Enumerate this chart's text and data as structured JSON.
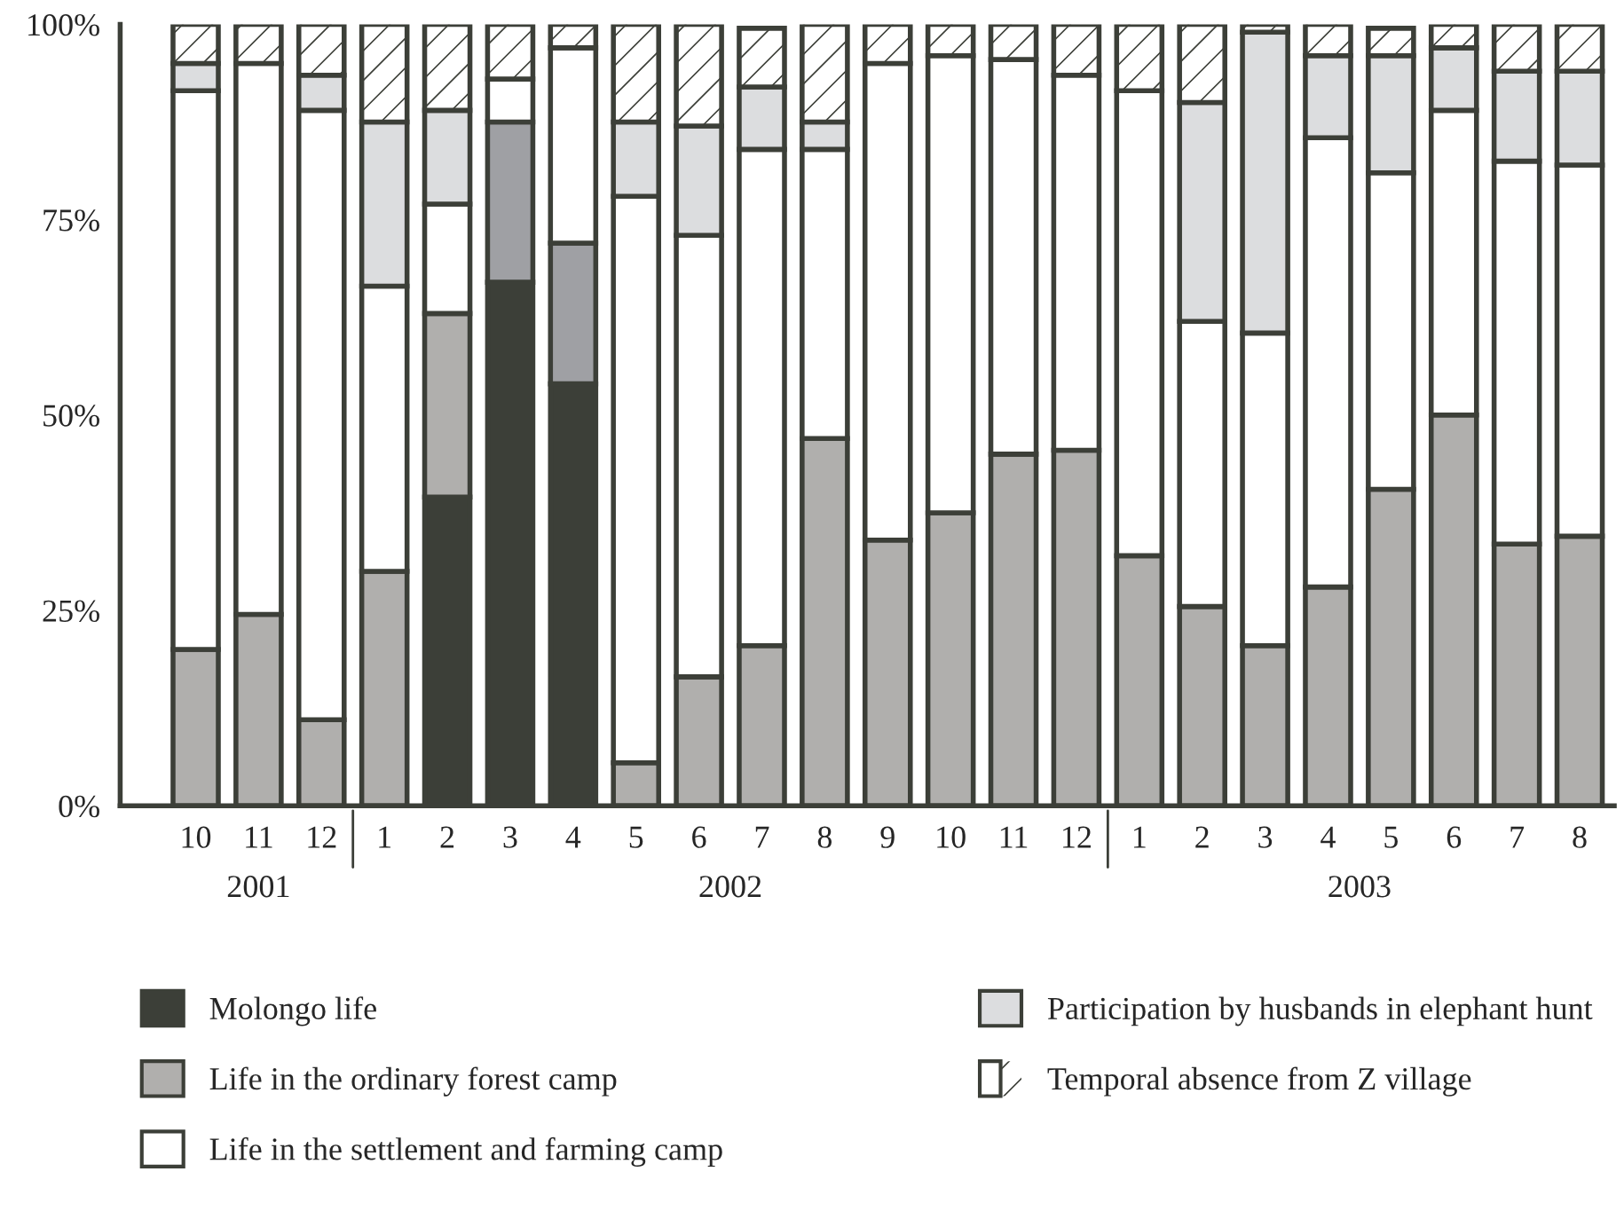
{
  "chart_data": {
    "type": "bar",
    "stacked": true,
    "categories": [
      "10",
      "11",
      "12",
      "1",
      "2",
      "3",
      "4",
      "5",
      "6",
      "7",
      "8",
      "9",
      "10",
      "11",
      "12",
      "1",
      "2",
      "3",
      "4",
      "5",
      "6",
      "7",
      "8"
    ],
    "series": [
      {
        "name": "Molongo life",
        "color": "#3c3f38",
        "values": [
          0,
          0,
          0,
          0,
          39.5,
          67,
          54,
          0,
          0,
          0,
          0,
          0,
          0,
          0,
          0,
          0,
          0,
          0,
          0,
          0,
          0,
          0,
          0
        ]
      },
      {
        "name": "Life in the ordinary forest camp",
        "color": "#b0afad",
        "colors": [
          "#b0afad",
          "#b0afad",
          "#b0afad",
          "#b0afad",
          "#b0afad",
          "#9fa0a4",
          "#9fa0a4",
          "#b0afad",
          "#b0afad",
          "#b0afad",
          "#b0afad",
          "#b0afad",
          "#b0afad",
          "#b0afad",
          "#b0afad",
          "#b0afad",
          "#b0afad",
          "#b0afad",
          "#b0afad",
          "#b0afad",
          "#b0afad",
          "#b0afad",
          "#b0afad"
        ],
        "values": [
          20,
          24.5,
          11,
          30,
          23.5,
          20.5,
          18,
          5.5,
          16.5,
          20.5,
          47,
          34,
          37.5,
          45,
          45.5,
          32,
          25.5,
          20.5,
          28,
          40.5,
          50,
          33.5,
          34.5
        ]
      },
      {
        "name": "Life in the settlement and farming camp",
        "color": "#ffffff",
        "values": [
          71.5,
          70.5,
          78,
          36.5,
          14,
          5.5,
          25,
          72.5,
          56.5,
          63.5,
          37,
          61,
          58.5,
          50.5,
          48,
          59.5,
          36.5,
          40,
          57.5,
          40.5,
          39,
          49,
          47.5
        ]
      },
      {
        "name": "Participation by husbands in elephant hunt",
        "color": "#dcdddf",
        "values": [
          3.5,
          0,
          4.5,
          21,
          12,
          0,
          0,
          9.5,
          14,
          8,
          3.5,
          0,
          0,
          0,
          0,
          0,
          28,
          38.5,
          10.5,
          15,
          8,
          11.5,
          12
        ]
      },
      {
        "name": "Temporal absence from Z village",
        "color": "#ffffff",
        "values": [
          5,
          5,
          6.5,
          12.5,
          11,
          7,
          3,
          12.5,
          13,
          7.5,
          12.5,
          5,
          4,
          4.5,
          6.5,
          8.5,
          10,
          1,
          4,
          3.5,
          3,
          6,
          6
        ]
      }
    ],
    "ylim": [
      0,
      100
    ],
    "yticks": [
      {
        "value": 0,
        "label": "0%"
      },
      {
        "value": 25,
        "label": "25%"
      },
      {
        "value": 50,
        "label": "50%"
      },
      {
        "value": 75,
        "label": "75%"
      },
      {
        "value": 100,
        "label": "100%"
      }
    ],
    "annotations": [
      "2001",
      "2002",
      "2003"
    ],
    "grid": false,
    "legend": "bottom"
  }
}
